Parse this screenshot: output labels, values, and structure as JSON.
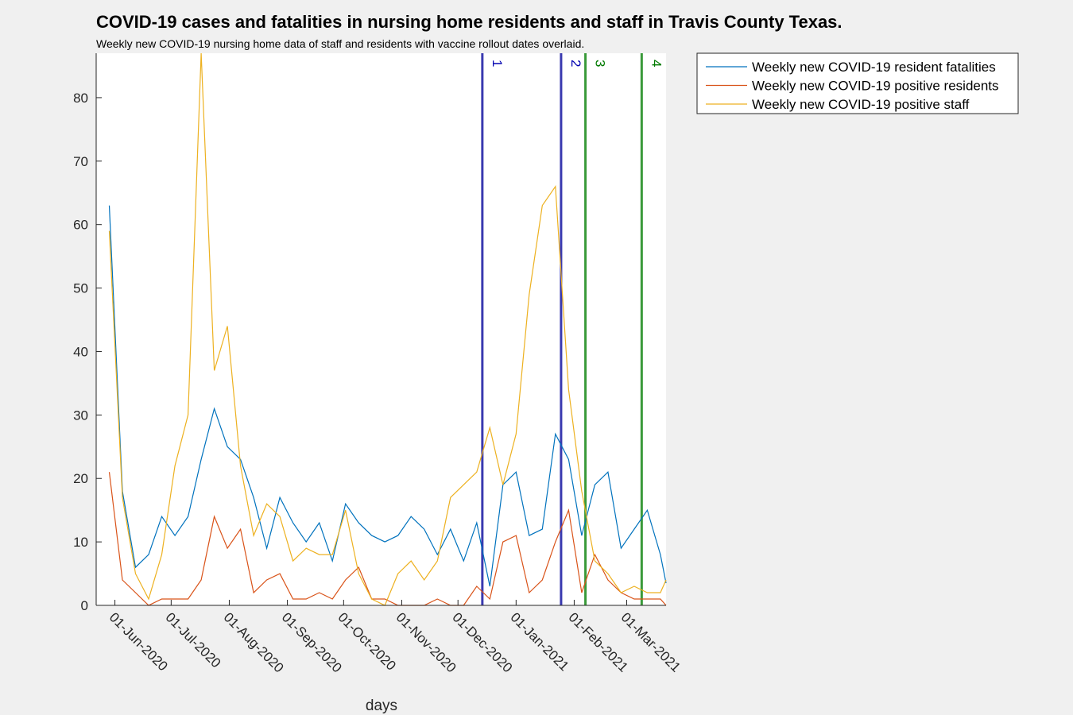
{
  "chart_data": {
    "type": "line",
    "title": "COVID-19 cases and fatalities in nursing home residents and staff in Travis County Texas.",
    "subtitle": "Weekly new COVID-19 nursing home data of staff and residents with vaccine rollout dates overlaid.",
    "xlabel": "days",
    "ylabel": "",
    "ylim": [
      0,
      87
    ],
    "yticks": [
      0,
      10,
      20,
      30,
      40,
      50,
      60,
      70,
      80
    ],
    "xlim": [
      "2020-05-22",
      "2021-03-22"
    ],
    "xticks": [
      {
        "date": "2020-06-01",
        "label": "01-Jun-2020"
      },
      {
        "date": "2020-07-01",
        "label": "01-Jul-2020"
      },
      {
        "date": "2020-08-01",
        "label": "01-Aug-2020"
      },
      {
        "date": "2020-09-01",
        "label": "01-Sep-2020"
      },
      {
        "date": "2020-10-01",
        "label": "01-Oct-2020"
      },
      {
        "date": "2020-11-01",
        "label": "01-Nov-2020"
      },
      {
        "date": "2020-12-01",
        "label": "01-Dec-2020"
      },
      {
        "date": "2021-01-01",
        "label": "01-Jan-2021"
      },
      {
        "date": "2021-02-01",
        "label": "01-Feb-2021"
      },
      {
        "date": "2021-03-01",
        "label": "01-Mar-2021"
      }
    ],
    "x": [
      "2020-05-29",
      "2020-06-05",
      "2020-06-12",
      "2020-06-19",
      "2020-06-26",
      "2020-07-03",
      "2020-07-10",
      "2020-07-17",
      "2020-07-24",
      "2020-07-31",
      "2020-08-07",
      "2020-08-14",
      "2020-08-21",
      "2020-08-28",
      "2020-09-04",
      "2020-09-11",
      "2020-09-18",
      "2020-09-25",
      "2020-10-02",
      "2020-10-09",
      "2020-10-16",
      "2020-10-23",
      "2020-10-30",
      "2020-11-06",
      "2020-11-13",
      "2020-11-20",
      "2020-11-27",
      "2020-12-04",
      "2020-12-11",
      "2020-12-18",
      "2020-12-25",
      "2021-01-01",
      "2021-01-08",
      "2021-01-15",
      "2021-01-22",
      "2021-01-29",
      "2021-02-05",
      "2021-02-12",
      "2021-02-19",
      "2021-02-26",
      "2021-03-05",
      "2021-03-12",
      "2021-03-19"
    ],
    "series": [
      {
        "name": "Weekly new COVID-19 resident fatalities",
        "color": "#0072bd",
        "values": [
          63,
          18,
          6,
          8,
          14,
          11,
          14,
          23,
          31,
          25,
          23,
          17,
          9,
          17,
          13,
          10,
          13,
          7,
          16,
          13,
          11,
          10,
          11,
          14,
          12,
          8,
          12,
          7,
          13,
          3,
          19,
          21,
          11,
          12,
          27,
          23,
          11,
          19,
          21,
          9,
          12,
          15,
          8
        ]
      },
      {
        "name": "Weekly new COVID-19 positive residents",
        "color": "#d95319",
        "values": [
          21,
          4,
          2,
          0,
          1,
          1,
          1,
          4,
          14,
          9,
          12,
          2,
          4,
          5,
          1,
          1,
          2,
          1,
          4,
          6,
          1,
          1,
          0,
          0,
          0,
          1,
          0,
          0,
          3,
          1,
          10,
          11,
          2,
          4,
          10,
          15,
          2,
          8,
          4,
          2,
          1,
          1,
          1
        ]
      },
      {
        "name": "Weekly new COVID-19 positive staff",
        "color": "#edb120",
        "values": [
          59,
          17,
          5,
          1,
          8,
          22,
          30,
          87,
          37,
          44,
          22,
          11,
          16,
          14,
          7,
          9,
          8,
          8,
          15,
          5,
          1,
          0,
          5,
          7,
          4,
          7,
          17,
          19,
          21,
          28,
          19,
          27,
          49,
          63,
          66,
          34,
          18,
          7,
          5,
          2,
          3,
          2,
          2
        ]
      }
    ],
    "tail": [
      {
        "series": 0,
        "date": "2021-03-22",
        "value": 3.5
      },
      {
        "series": 1,
        "date": "2021-03-22",
        "value": 0
      },
      {
        "series": 2,
        "date": "2021-03-22",
        "value": 4
      }
    ],
    "vaccine_lines": [
      {
        "label": "1",
        "date": "2020-12-14",
        "color": "#3a3ab0",
        "text_color": "#0000b0"
      },
      {
        "label": "2",
        "date": "2021-01-25",
        "color": "#3a3ab0",
        "text_color": "#0000b0"
      },
      {
        "label": "3",
        "date": "2021-02-07",
        "color": "#3a9a3a",
        "text_color": "#007a00"
      },
      {
        "label": "4",
        "date": "2021-03-09",
        "color": "#3a9a3a",
        "text_color": "#007a00"
      }
    ],
    "grid": false,
    "legend_position": "outside-top-right"
  }
}
